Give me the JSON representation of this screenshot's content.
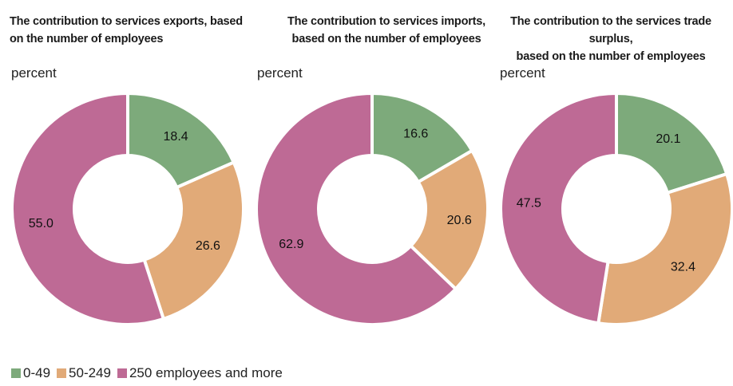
{
  "chart_data": [
    {
      "type": "pie",
      "title": "The contribution to services exports, based\non the number of employees",
      "unit": "percent",
      "categories": [
        "0-49",
        "50-249",
        "250 employees and more"
      ],
      "values": [
        18.4,
        26.6,
        55.0
      ],
      "value_labels": [
        "18.4",
        "26.6",
        "55.0"
      ]
    },
    {
      "type": "pie",
      "title": "The contribution to services imports,\nbased on the number of employees",
      "unit": "percent",
      "categories": [
        "0-49",
        "50-249",
        "250 employees and more"
      ],
      "values": [
        16.6,
        20.6,
        62.9
      ],
      "value_labels": [
        "16.6",
        "20.6",
        "62.9"
      ]
    },
    {
      "type": "pie",
      "title": "The contribution to the services trade surplus,\nbased on the number of employees",
      "unit": "percent",
      "categories": [
        "0-49",
        "50-249",
        "250 employees and more"
      ],
      "values": [
        20.1,
        32.4,
        47.5
      ],
      "value_labels": [
        "20.1",
        "32.4",
        "47.5"
      ]
    }
  ],
  "colors": {
    "0-49": "#7daa7b",
    "50-249": "#e1aa78",
    "250 employees and more": "#be6a95"
  },
  "legend": [
    {
      "label": "0-49",
      "color": "#7daa7b"
    },
    {
      "label": "50-249",
      "color": "#e1aa78"
    },
    {
      "label": "250 employees and more",
      "color": "#be6a95"
    }
  ]
}
